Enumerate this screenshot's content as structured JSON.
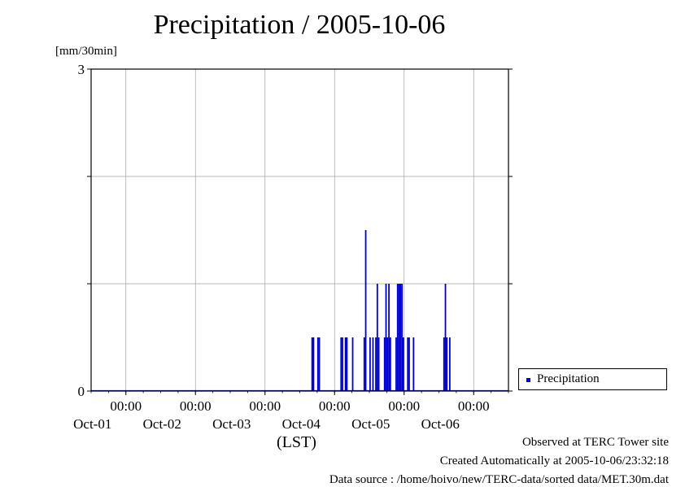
{
  "header": {
    "title": "Precipitation / 2005-10-06",
    "unit_label": "[mm/30min]"
  },
  "chart_data": {
    "type": "bar",
    "title": "Precipitation / 2005-10-06",
    "ylabel": "[mm/30min]",
    "xlabel": "(LST)",
    "ylim": [
      0,
      3
    ],
    "y_tick_labels": [
      "0",
      "3"
    ],
    "xlim_days": [
      0,
      6
    ],
    "x_ticks": [
      {
        "time": "00:00",
        "date": "Oct-01"
      },
      {
        "time": "00:00",
        "date": "Oct-02"
      },
      {
        "time": "00:00",
        "date": "Oct-03"
      },
      {
        "time": "00:00",
        "date": "Oct-04"
      },
      {
        "time": "00:00",
        "date": "Oct-05"
      },
      {
        "time": "00:00",
        "date": "Oct-06"
      }
    ],
    "grid": true,
    "legend_position": "right",
    "color": "#0000cc",
    "series": [
      {
        "name": "Precipitation",
        "points": [
          {
            "t": "2005-10-03 16:00",
            "v": 0.5
          },
          {
            "t": "2005-10-03 16:30",
            "v": 0.5
          },
          {
            "t": "2005-10-03 18:00",
            "v": 0.5
          },
          {
            "t": "2005-10-03 18:30",
            "v": 0.5
          },
          {
            "t": "2005-10-04 02:00",
            "v": 0.5
          },
          {
            "t": "2005-10-04 02:30",
            "v": 0.5
          },
          {
            "t": "2005-10-04 03:30",
            "v": 0.5
          },
          {
            "t": "2005-10-04 04:00",
            "v": 0.5
          },
          {
            "t": "2005-10-04 06:00",
            "v": 0.5
          },
          {
            "t": "2005-10-04 10:00",
            "v": 0.5
          },
          {
            "t": "2005-10-04 10:30",
            "v": 1.5
          },
          {
            "t": "2005-10-04 12:00",
            "v": 0.5
          },
          {
            "t": "2005-10-04 13:00",
            "v": 0.5
          },
          {
            "t": "2005-10-04 14:00",
            "v": 0.5
          },
          {
            "t": "2005-10-04 14:30",
            "v": 1.0
          },
          {
            "t": "2005-10-04 15:00",
            "v": 0.5
          },
          {
            "t": "2005-10-04 17:00",
            "v": 0.5
          },
          {
            "t": "2005-10-04 17:30",
            "v": 1.0
          },
          {
            "t": "2005-10-04 18:00",
            "v": 0.5
          },
          {
            "t": "2005-10-04 18:30",
            "v": 1.0
          },
          {
            "t": "2005-10-04 19:00",
            "v": 0.5
          },
          {
            "t": "2005-10-04 21:00",
            "v": 0.5
          },
          {
            "t": "2005-10-04 21:30",
            "v": 1.0
          },
          {
            "t": "2005-10-04 22:00",
            "v": 1.0
          },
          {
            "t": "2005-10-04 22:30",
            "v": 1.0
          },
          {
            "t": "2005-10-04 23:00",
            "v": 1.0
          },
          {
            "t": "2005-10-04 23:30",
            "v": 0.5
          },
          {
            "t": "2005-10-05 01:00",
            "v": 0.5
          },
          {
            "t": "2005-10-05 01:30",
            "v": 0.5
          },
          {
            "t": "2005-10-05 03:00",
            "v": 0.5
          },
          {
            "t": "2005-10-05 13:30",
            "v": 0.5
          },
          {
            "t": "2005-10-05 14:00",
            "v": 1.0
          },
          {
            "t": "2005-10-05 14:30",
            "v": 0.5
          },
          {
            "t": "2005-10-05 15:30",
            "v": 0.5
          }
        ]
      }
    ]
  },
  "legend": {
    "label": "Precipitation"
  },
  "footer": {
    "x_axis_unit": "(LST)",
    "line1": "Observed at TERC Tower site",
    "line2": "Created Automatically at 2005-10-06/23:32:18",
    "line3": "Data source : /home/hoivo/new/TERC-data/sorted  data/MET.30m.dat"
  }
}
